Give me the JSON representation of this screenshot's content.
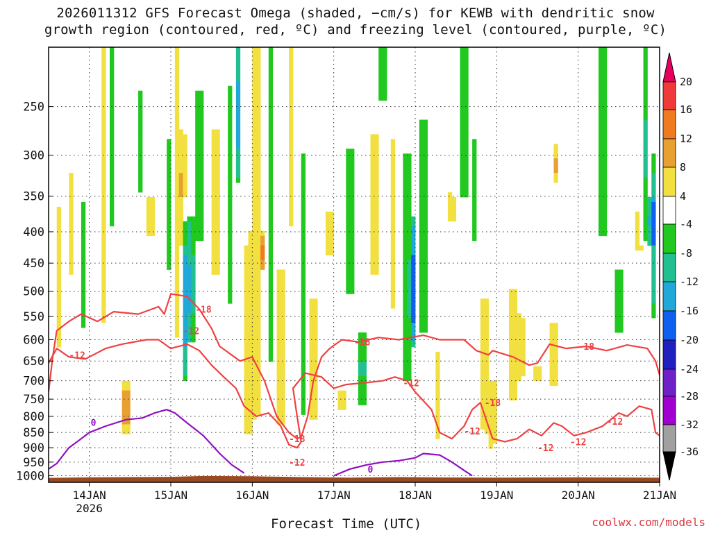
{
  "chart_data": {
    "type": "heatmap",
    "title_lines": [
      "2026011312 GFS Forecast Omega (shaded, −cm/s) for KEWB with dendritic snow",
      "growth region (contoured, red, ºC) and freezing level (contoured, purple, ºC)"
    ],
    "xlabel": "Forecast Time (UTC)",
    "ylabel": "",
    "x_ticks": [
      "14JAN",
      "15JAN",
      "16JAN",
      "17JAN",
      "18JAN",
      "19JAN",
      "20JAN",
      "21JAN"
    ],
    "x_year_label": "2026",
    "x_range_days": [
      13.5,
      21.0
    ],
    "y_ticks": [
      250,
      300,
      350,
      400,
      450,
      500,
      550,
      600,
      650,
      700,
      750,
      800,
      850,
      900,
      950,
      1000
    ],
    "y_range_hpa": [
      200,
      1025
    ],
    "colorbar": {
      "labels": [
        20,
        16,
        12,
        8,
        4,
        -4,
        -8,
        -12,
        -16,
        -20,
        -24,
        -28,
        -32,
        -36
      ],
      "colors": [
        "#e8005c",
        "#f03a3a",
        "#f07a20",
        "#e8a030",
        "#f2e040",
        "#ffffff",
        "#20c820",
        "#20c090",
        "#20a8d8",
        "#1060f0",
        "#2020c0",
        "#7020c8",
        "#a000d0",
        "#a0a0a0",
        "#000000"
      ]
    },
    "red_contours": [
      {
        "level": -18,
        "label": "-18"
      },
      {
        "level": -12,
        "label": "-12"
      }
    ],
    "red_contour_labels": [
      "-12",
      "-18",
      "-12",
      "-18",
      "-12",
      "-18",
      "-12",
      "-18",
      "-12",
      "-12",
      "-18",
      "-12",
      "-12"
    ],
    "purple_contour_labels": [
      "0",
      "0"
    ],
    "colors": {
      "red_contour": "#f04040",
      "purple_contour": "#9010c0",
      "ground": "#9a4a22",
      "grid": "#333333",
      "credit": "#d9363e"
    }
  },
  "footer": {
    "credit": "coolwx.com/models"
  }
}
